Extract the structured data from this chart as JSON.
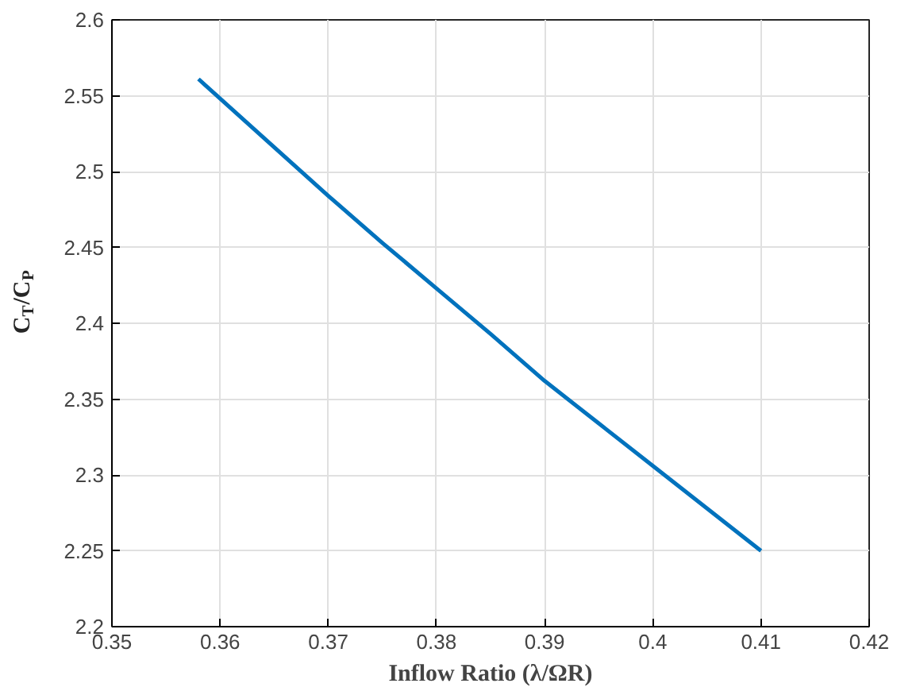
{
  "chart_data": {
    "type": "line",
    "xlabel": "Inflow Ratio (λ/ΩR)",
    "ylabel": "C$_{T}$/C$_{P}$",
    "x": [
      0.358,
      0.365,
      0.37,
      0.375,
      0.38,
      0.385,
      0.39,
      0.395,
      0.4,
      0.405,
      0.41
    ],
    "series": [
      {
        "color": "#0072bd",
        "values": [
          2.561,
          2.516,
          2.484,
          2.453,
          2.423,
          2.393,
          2.362,
          2.334,
          2.306,
          2.278,
          2.25
        ]
      }
    ],
    "xlim": [
      0.35,
      0.42
    ],
    "xticks": [
      0.35,
      0.36,
      0.37,
      0.38,
      0.39,
      0.4,
      0.41,
      0.42
    ],
    "ylim": [
      2.2,
      2.6
    ],
    "yticks": [
      2.2,
      2.25,
      2.3,
      2.35,
      2.4,
      2.45,
      2.5,
      2.55,
      2.6
    ],
    "grid": true,
    "marker": "none",
    "line_style": "solid"
  }
}
